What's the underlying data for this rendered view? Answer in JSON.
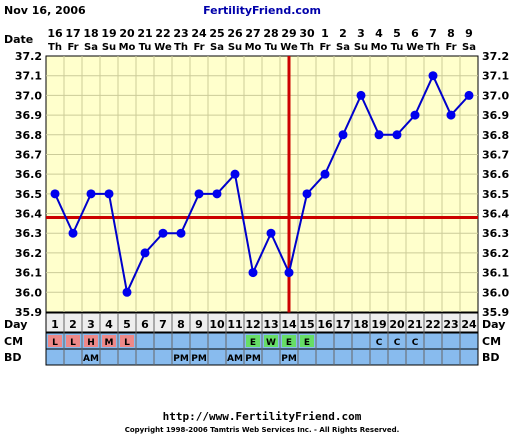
{
  "header": {
    "date_text": "Nov 16, 2006",
    "site_name": "FertilityFriend.com"
  },
  "footer": {
    "url": "http://www.FertilityFriend.com",
    "copyright": "Copyright 1998-2006 Tamtris Web Services Inc. - All Rights Reserved."
  },
  "row_labels": {
    "date": "Date",
    "day": "Day",
    "cm": "CM",
    "bd": "BD"
  },
  "colors": {
    "plot_bg": "#ffffcc",
    "grid": "#cccc99",
    "line": "#0000cc",
    "point": "#0000ee",
    "coverline": "#cc0000",
    "ovulation_line": "#cc0000",
    "cm_bg": "#88bbee",
    "day_bg": "#eeeeee",
    "cm_L": "#ee8888",
    "cm_H": "#ee8888",
    "cm_M": "#ee8888",
    "cm_E": "#66dd66",
    "cm_W": "#66dd66",
    "cm_C": "#88bbee"
  },
  "chart_data": {
    "type": "line",
    "dates": [
      "16",
      "17",
      "18",
      "19",
      "20",
      "21",
      "22",
      "23",
      "24",
      "25",
      "26",
      "27",
      "28",
      "29",
      "30",
      "1",
      "2",
      "3",
      "4",
      "5",
      "6",
      "7",
      "8",
      "9"
    ],
    "weekdays": [
      "Th",
      "Fr",
      "Sa",
      "Su",
      "Mo",
      "Tu",
      "We",
      "Th",
      "Fr",
      "Sa",
      "Su",
      "Mo",
      "Tu",
      "We",
      "Th",
      "Fr",
      "Sa",
      "Su",
      "Mo",
      "Tu",
      "We",
      "Th",
      "Fr",
      "Sa"
    ],
    "cycle_days": [
      "1",
      "2",
      "3",
      "4",
      "5",
      "6",
      "7",
      "8",
      "9",
      "10",
      "11",
      "12",
      "13",
      "14",
      "15",
      "16",
      "17",
      "18",
      "19",
      "20",
      "21",
      "22",
      "23",
      "24"
    ],
    "temperatures": [
      36.5,
      36.3,
      36.5,
      36.5,
      36.0,
      36.2,
      36.3,
      36.3,
      36.5,
      36.5,
      36.6,
      36.1,
      36.3,
      36.1,
      36.5,
      36.6,
      36.8,
      37.0,
      36.8,
      36.8,
      36.9,
      37.1,
      36.9,
      37.0
    ],
    "y_ticks": [
      "35.9",
      "36.0",
      "36.1",
      "36.2",
      "36.3",
      "36.4",
      "36.5",
      "36.6",
      "36.7",
      "36.8",
      "36.9",
      "37.0",
      "37.1",
      "37.2"
    ],
    "ylim": [
      35.9,
      37.2
    ],
    "coverline": 36.38,
    "ovulation_day": 14,
    "cm": [
      "L",
      "L",
      "H",
      "M",
      "L",
      "",
      "",
      "",
      "",
      "",
      "",
      "E",
      "W",
      "E",
      "E",
      "",
      "",
      "",
      "C",
      "C",
      "C",
      "",
      "",
      ""
    ],
    "bd": [
      "",
      "",
      "AM",
      "",
      "",
      "",
      "",
      "PM",
      "PM",
      "",
      "AM",
      "PM",
      "",
      "PM",
      "",
      "",
      "",
      "",
      "",
      "",
      "",
      "",
      "",
      ""
    ],
    "grid": true
  }
}
